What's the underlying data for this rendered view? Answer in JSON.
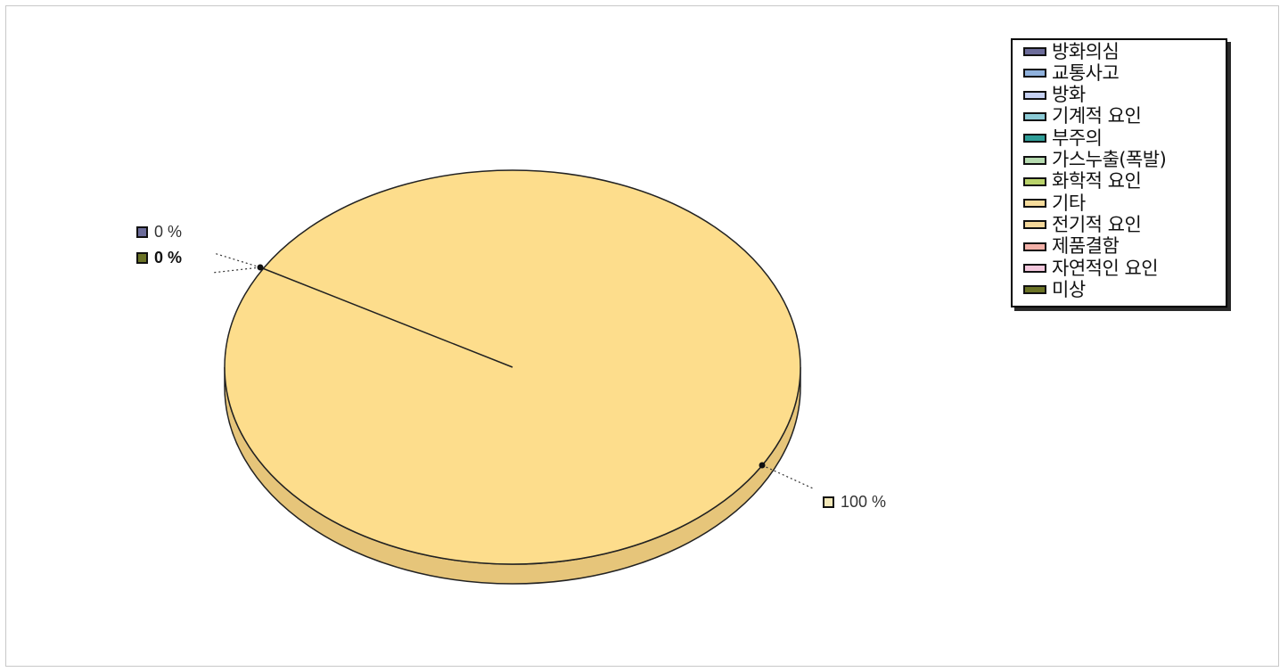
{
  "chart_data": {
    "type": "pie",
    "categories": [
      "방화의심",
      "교통사고",
      "방화",
      "기계적 요인",
      "부주의",
      "가스누출(폭발)",
      "화학적 요인",
      "기타",
      "전기적 요인",
      "제품결함",
      "자연적인 요인",
      "미상"
    ],
    "colors": [
      "#6c6c9a",
      "#8fb1dc",
      "#c6d1f2",
      "#8ccbd6",
      "#2e9e98",
      "#b6dbb0",
      "#b9d26a",
      "#f6dc9c",
      "#f3d79a",
      "#f2b0a8",
      "#f4c8de",
      "#6b7326"
    ],
    "values": [
      0,
      0,
      0,
      0,
      0,
      0,
      0,
      0,
      100,
      0,
      0,
      0
    ],
    "slice_labels": [
      {
        "text": "0 %",
        "color": "#6c6c9a",
        "bold": false
      },
      {
        "text": "0 %",
        "color": "#6b7326",
        "bold": true
      },
      {
        "text": "100 %",
        "color": "#f3e8b8",
        "bold": false
      }
    ],
    "legend_position": "top-right"
  },
  "legend": [
    {
      "label": "방화의심"
    },
    {
      "label": "교통사고"
    },
    {
      "label": "방화"
    },
    {
      "label": "기계적 요인"
    },
    {
      "label": "부주의"
    },
    {
      "label": "가스누출(폭발)"
    },
    {
      "label": "화학적 요인"
    },
    {
      "label": "기타"
    },
    {
      "label": "전기적 요인"
    },
    {
      "label": "제품결함"
    },
    {
      "label": "자연적인 요인"
    },
    {
      "label": "미상"
    }
  ],
  "style": {
    "pie_top_color": "#fddd8c",
    "pie_side_color": "#e6c57a",
    "outline_color": "#222222"
  }
}
